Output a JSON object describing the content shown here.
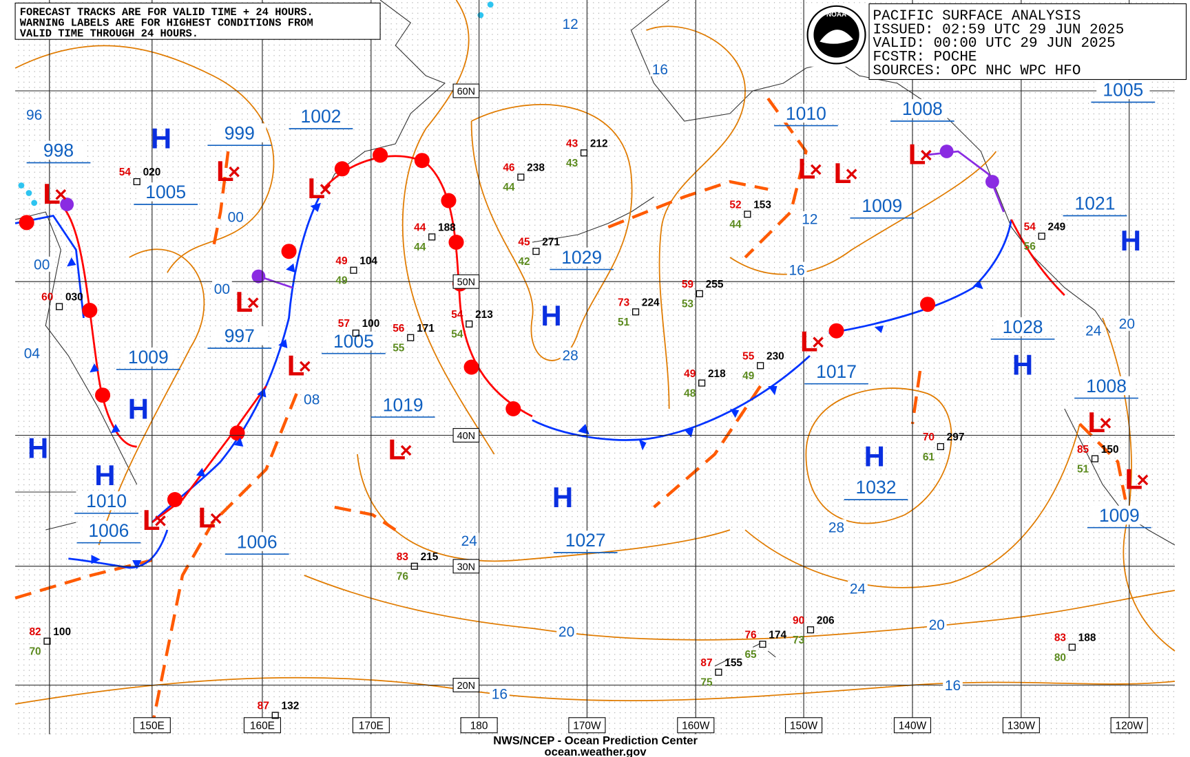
{
  "notice": [
    "FORECAST TRACKS ARE FOR VALID TIME + 24 HOURS.",
    "WARNING LABELS ARE FOR HIGHEST CONDITIONS FROM",
    "VALID TIME THROUGH 24 HOURS."
  ],
  "header": {
    "logo": "NOAA",
    "lines": [
      "PACIFIC SURFACE ANALYSIS",
      "ISSUED: 02:59 UTC 29 JUN 2025",
      "VALID:  00:00 UTC 29 JUN 2025",
      "FCSTR:  POCHE",
      "SOURCES: OPC NHC WPC HFO"
    ]
  },
  "latitudes": [
    "60N",
    "50N",
    "40N",
    "30N",
    "20N"
  ],
  "longitudes": [
    "150E",
    "160E",
    "170E",
    "180",
    "170W",
    "160W",
    "150W",
    "140W",
    "130W",
    "120W"
  ],
  "pressure_labels": [
    "998",
    "1005",
    "999",
    "1002",
    "997",
    "1009",
    "1010",
    "1006",
    "1006",
    "1005",
    "1019",
    "1029",
    "1027",
    "1010",
    "1008",
    "1009",
    "1017",
    "1032",
    "1028",
    "1021",
    "1005",
    "1008",
    "1009"
  ],
  "isobar_labels": [
    "96",
    "00",
    "04",
    "00",
    "00",
    "08",
    "12",
    "16",
    "12",
    "16",
    "28",
    "24",
    "20",
    "16",
    "24",
    "28",
    "20",
    "16",
    "24",
    "20"
  ],
  "highs": [
    "H",
    "H",
    "H",
    "H",
    "H",
    "H",
    "H",
    "H",
    "H"
  ],
  "lows": [
    "L",
    "L",
    "L",
    "L",
    "L",
    "L",
    "L",
    "L",
    "L",
    "L",
    "L",
    "L",
    "L",
    "L"
  ],
  "stations": [
    {
      "temp": "54",
      "pressure": "020"
    },
    {
      "temp": "60",
      "pressure": "030"
    },
    {
      "temp": "49",
      "pressure": "104",
      "dew": "49"
    },
    {
      "temp": "44",
      "pressure": "188",
      "dew": "44"
    },
    {
      "temp": "46",
      "pressure": "238",
      "dew": "44"
    },
    {
      "temp": "43",
      "pressure": "212",
      "dew": "43"
    },
    {
      "temp": "45",
      "pressure": "271",
      "dew": "42"
    },
    {
      "temp": "73",
      "pressure": "224",
      "dew": "51"
    },
    {
      "temp": "59",
      "pressure": "255",
      "dew": "53"
    },
    {
      "temp": "52",
      "pressure": "153",
      "dew": "44"
    },
    {
      "temp": "55",
      "pressure": "230",
      "dew": "49"
    },
    {
      "temp": "49",
      "pressure": "218",
      "dew": "48"
    },
    {
      "temp": "56",
      "pressure": "171",
      "dew": "55"
    },
    {
      "temp": "54",
      "pressure": "213",
      "dew": "54"
    },
    {
      "temp": "57",
      "pressure": "100"
    },
    {
      "temp": "70",
      "pressure": "297",
      "dew": "61"
    },
    {
      "temp": "83",
      "pressure": "215",
      "dew": "76"
    },
    {
      "temp": "76",
      "pressure": "174",
      "dew": "65"
    },
    {
      "temp": "90",
      "pressure": "206",
      "dew": "73"
    },
    {
      "temp": "87",
      "pressure": "155",
      "dew": "75"
    },
    {
      "temp": "83",
      "pressure": "188",
      "dew": "80"
    },
    {
      "temp": "82",
      "pressure": "100",
      "dew": "70"
    },
    {
      "temp": "87",
      "pressure": "132"
    },
    {
      "temp": "85",
      "pressure": "150",
      "dew": "51"
    },
    {
      "temp": "54",
      "pressure": "249",
      "dew": "56"
    }
  ],
  "footer": [
    "NWS/NCEP - Ocean Prediction Center",
    "ocean.weather.gov"
  ]
}
